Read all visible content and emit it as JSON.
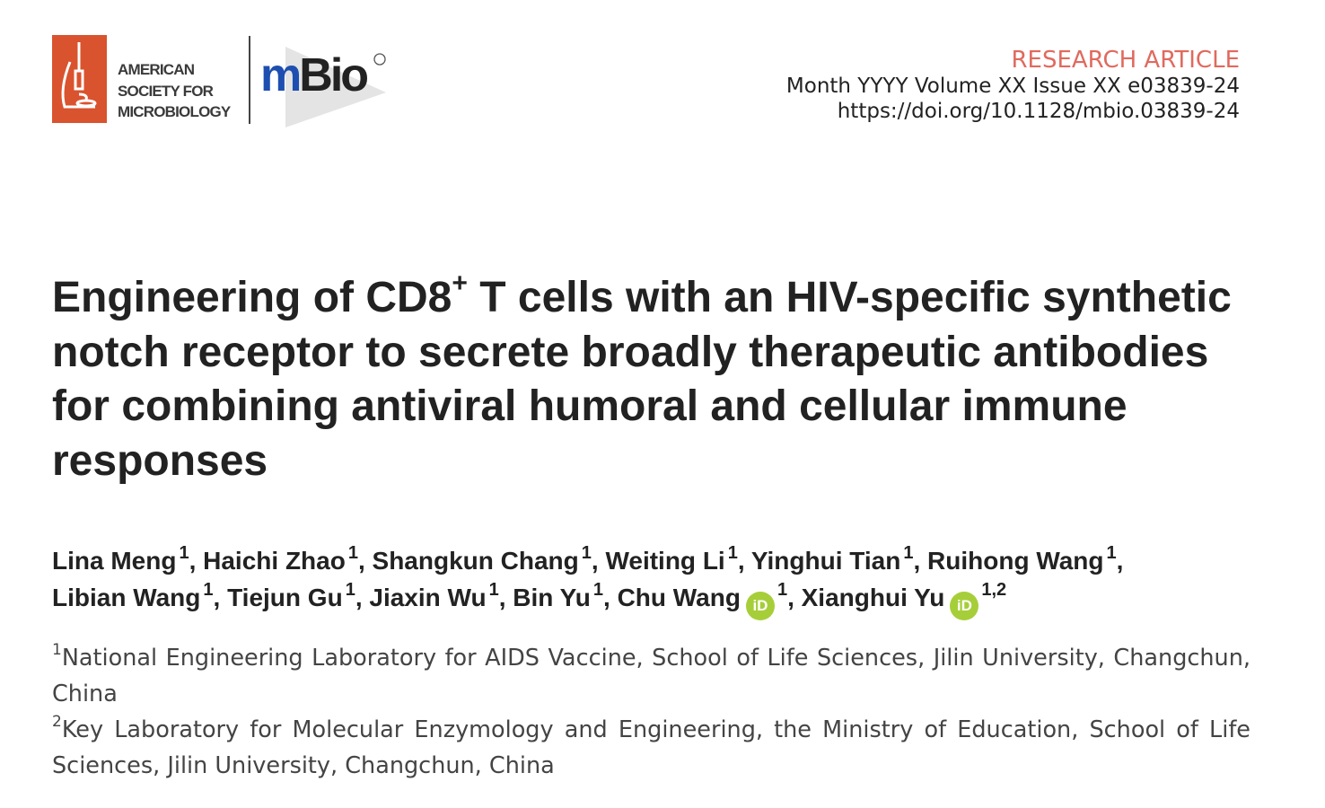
{
  "header": {
    "publisher_logo_text": "AMERICAN SOCIETY FOR MICROBIOLOGY",
    "journal_logo_text": "mBio",
    "article_type": "RESEARCH ARTICLE",
    "issue_line": "Month YYYY Volume XX Issue XX  e03839-24",
    "doi": "https://doi.org/10.1128/mbio.03839-24",
    "colors": {
      "article_type": "#e06a5e",
      "asm_red": "#d9532e",
      "mbio_blue": "#1e4fb0",
      "orcid_green": "#a6ce39"
    }
  },
  "title": {
    "pre": "Engineering of CD8",
    "sup": "+",
    "post": " T cells with an HIV-specific synthetic notch receptor to secrete broadly therapeutic antibodies for combining antiviral humoral and cellular immune responses"
  },
  "authors": [
    {
      "name": "Lina Meng",
      "aff": "1",
      "orcid": false
    },
    {
      "name": "Haichi Zhao",
      "aff": "1",
      "orcid": false
    },
    {
      "name": "Shangkun Chang",
      "aff": "1",
      "orcid": false
    },
    {
      "name": "Weiting Li",
      "aff": "1",
      "orcid": false
    },
    {
      "name": "Yinghui Tian",
      "aff": "1",
      "orcid": false
    },
    {
      "name": "Ruihong Wang",
      "aff": "1",
      "orcid": false
    },
    {
      "name": "Libian Wang",
      "aff": "1",
      "orcid": false
    },
    {
      "name": "Tiejun Gu",
      "aff": "1",
      "orcid": false
    },
    {
      "name": "Jiaxin Wu",
      "aff": "1",
      "orcid": false
    },
    {
      "name": "Bin Yu",
      "aff": "1",
      "orcid": false
    },
    {
      "name": "Chu Wang",
      "aff": "1",
      "orcid": true
    },
    {
      "name": "Xianghui Yu",
      "aff": "1,2",
      "orcid": true
    }
  ],
  "orcid_label": "iD",
  "affiliations": [
    {
      "num": "1",
      "text": "National Engineering Laboratory for AIDS Vaccine, School of Life Sciences, Jilin University, Changchun, China"
    },
    {
      "num": "2",
      "text": "Key Laboratory for Molecular Enzymology and Engineering, the Ministry of Education, School of Life Sciences, Jilin University, Changchun, China"
    }
  ]
}
